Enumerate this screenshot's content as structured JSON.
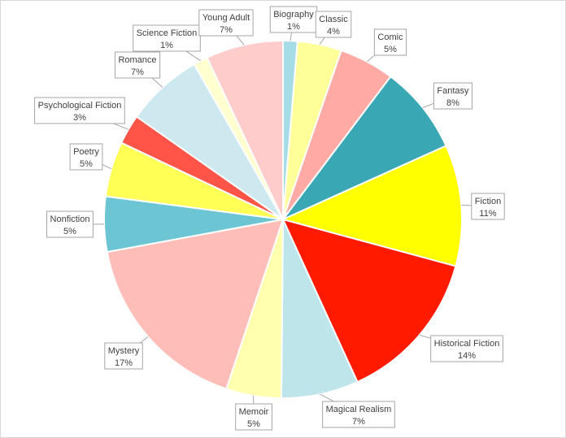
{
  "chart_data": {
    "type": "pie",
    "title": "",
    "legend": "none",
    "categories": [
      "Biography",
      "Classic",
      "Comic",
      "Fantasy",
      "Fiction",
      "Historical Fiction",
      "Magical Realism",
      "Memoir",
      "Mystery",
      "Nonfiction",
      "Poetry",
      "Psychological Fiction",
      "Romance",
      "Science Fiction",
      "Young Adult"
    ],
    "values": [
      1.3,
      4,
      5,
      8,
      11,
      14,
      7,
      5,
      17,
      5,
      5,
      2.7,
      7,
      1.3,
      7
    ],
    "labels": [
      "1%",
      "4%",
      "5%",
      "8%",
      "11%",
      "14%",
      "7%",
      "5%",
      "17%",
      "5%",
      "5%",
      "3%",
      "7%",
      "1%",
      "7%"
    ],
    "colors": [
      "#a6dce6",
      "#ffff99",
      "#ffaaa5",
      "#3aa7b5",
      "#ffff00",
      "#ff1a00",
      "#bde5ea",
      "#ffffad",
      "#ffbdb8",
      "#6cc5d3",
      "#ffff55",
      "#ff5447",
      "#cde9ef",
      "#ffffd0",
      "#ffcccc"
    ]
  }
}
